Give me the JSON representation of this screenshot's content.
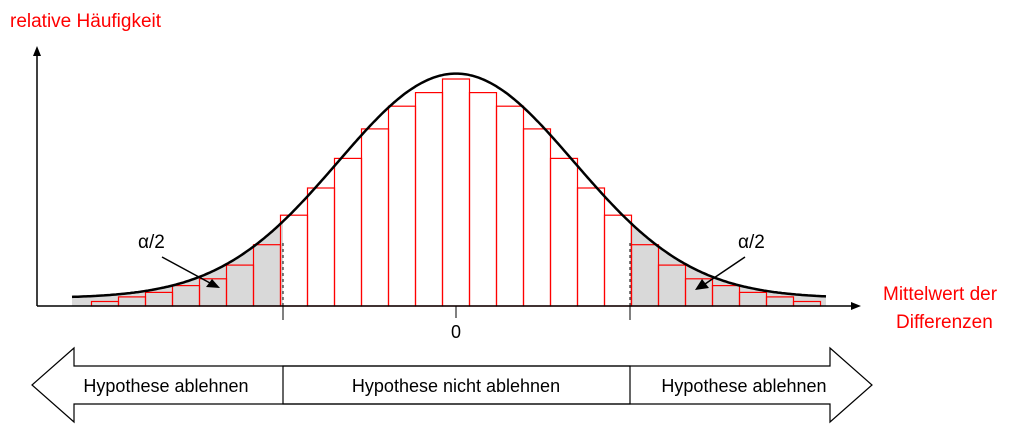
{
  "y_axis_label": "relative Häufigkeit",
  "x_axis_label_line1": "Mittelwert der",
  "x_axis_label_line2": "Differenzen",
  "zero_tick_label": "0",
  "alpha_label_left": "α/2",
  "alpha_label_right": "α/2",
  "regions": {
    "left": "Hypothese ablehnen",
    "middle": "Hypothese nicht ablehnen",
    "right": "Hypothese ablehnen"
  },
  "colors": {
    "accent": "#ff0000",
    "rejection_fill": "#d9d9d9",
    "curve": "#000000"
  },
  "histogram_relative_heights": [
    0.02,
    0.04,
    0.06,
    0.09,
    0.12,
    0.18,
    0.27,
    0.4,
    0.52,
    0.65,
    0.78,
    0.88,
    0.94,
    1.0,
    0.94,
    0.88,
    0.78,
    0.65,
    0.52,
    0.4,
    0.27,
    0.18,
    0.12,
    0.09,
    0.06,
    0.04,
    0.02
  ]
}
